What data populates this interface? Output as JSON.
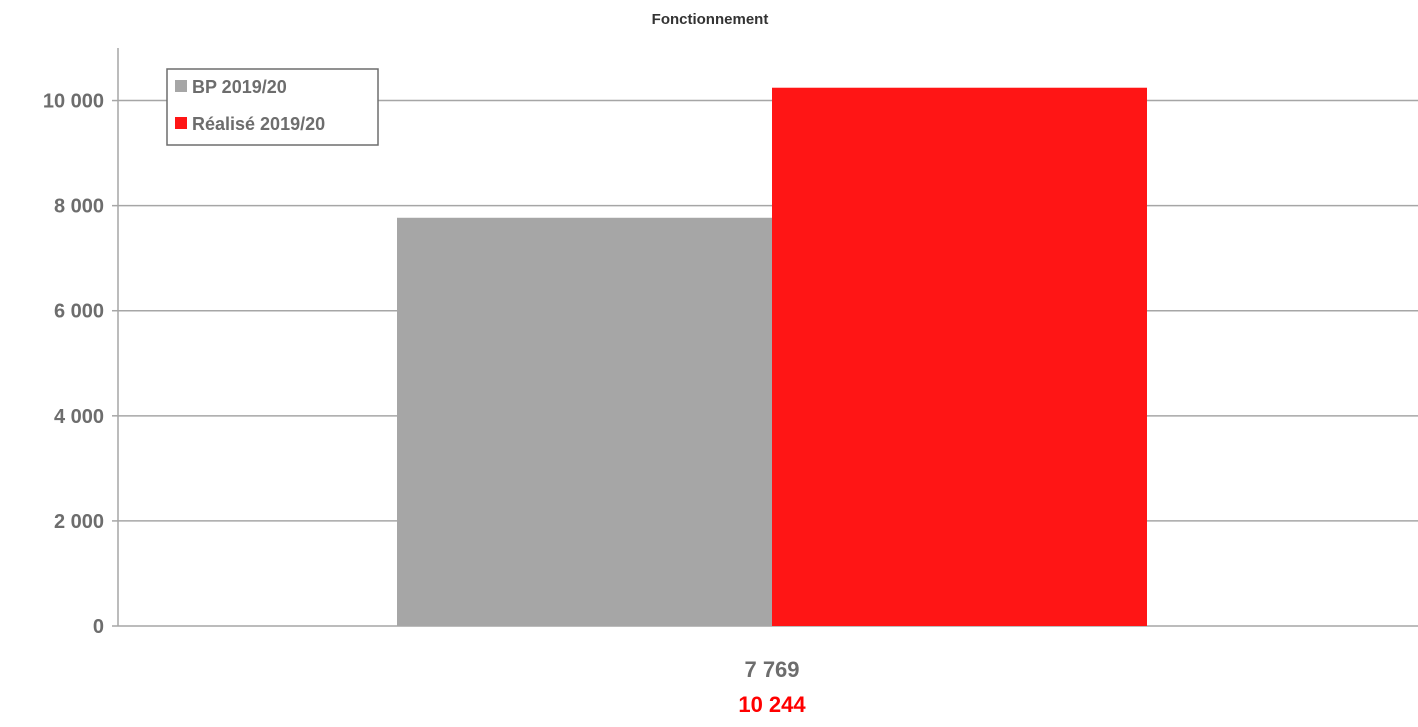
{
  "chart_data": {
    "type": "bar",
    "title": "Fonctionnement",
    "xlabel": "",
    "ylabel": "",
    "categories": [
      ""
    ],
    "series": [
      {
        "name": "BP 2019/20",
        "values": [
          7769
        ],
        "color": "#a6a6a6",
        "label": "7 769"
      },
      {
        "name": "Réalisé 2019/20",
        "values": [
          10244
        ],
        "color": "#ff1515",
        "label": "10 244"
      }
    ],
    "ylim": [
      0,
      11000
    ],
    "yticks": [
      0,
      2000,
      4000,
      6000,
      8000,
      10000
    ],
    "ytick_labels": [
      "0",
      "2 000",
      "4 000",
      "6 000",
      "8 000",
      "10 000"
    ],
    "grid": true,
    "legend_position": "top-left"
  }
}
